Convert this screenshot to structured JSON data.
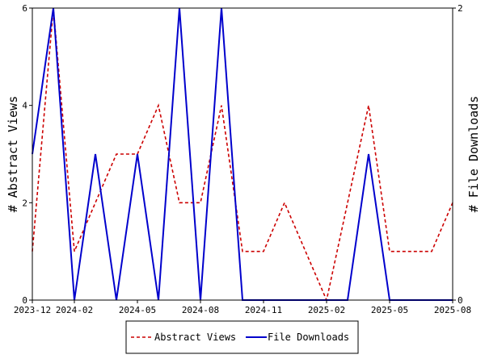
{
  "chart_data": {
    "type": "line",
    "x": [
      "2023-12",
      "2024-01",
      "2024-02",
      "2024-03",
      "2024-04",
      "2024-05",
      "2024-06",
      "2024-07",
      "2024-08",
      "2024-09",
      "2024-10",
      "2024-11",
      "2024-12",
      "2025-01",
      "2025-02",
      "2025-03",
      "2025-04",
      "2025-05",
      "2025-06",
      "2025-07",
      "2025-08"
    ],
    "x_tick_labels": [
      "2023-12",
      "2024-02",
      "2024-05",
      "2024-08",
      "2024-11",
      "2025-02",
      "2025-05",
      "2025-08"
    ],
    "ylabel_left": "# Abstract Views",
    "ylabel_right": "# File Downloads",
    "ylim_left": [
      0,
      6
    ],
    "ylim_right": [
      0,
      2
    ],
    "left_ticks": [
      "0",
      "2",
      "4",
      "6"
    ],
    "right_ticks": [
      "0",
      "2"
    ],
    "grid": false,
    "legend_position": "bottom",
    "series": [
      {
        "name": "Abstract Views",
        "axis": "left",
        "color": "#cc0000",
        "style": "dashed",
        "values": [
          1,
          6,
          1,
          2,
          3,
          3,
          4,
          2,
          2,
          4,
          1,
          1,
          2,
          1,
          0,
          2,
          4,
          1,
          1,
          1,
          2
        ]
      },
      {
        "name": "File Downloads",
        "axis": "right",
        "color": "#0000cc",
        "style": "solid",
        "values": [
          1,
          2,
          0,
          1,
          0,
          1,
          0,
          2,
          0,
          2,
          0,
          0,
          0,
          0,
          0,
          0,
          1,
          0,
          0,
          0,
          0
        ]
      }
    ]
  }
}
